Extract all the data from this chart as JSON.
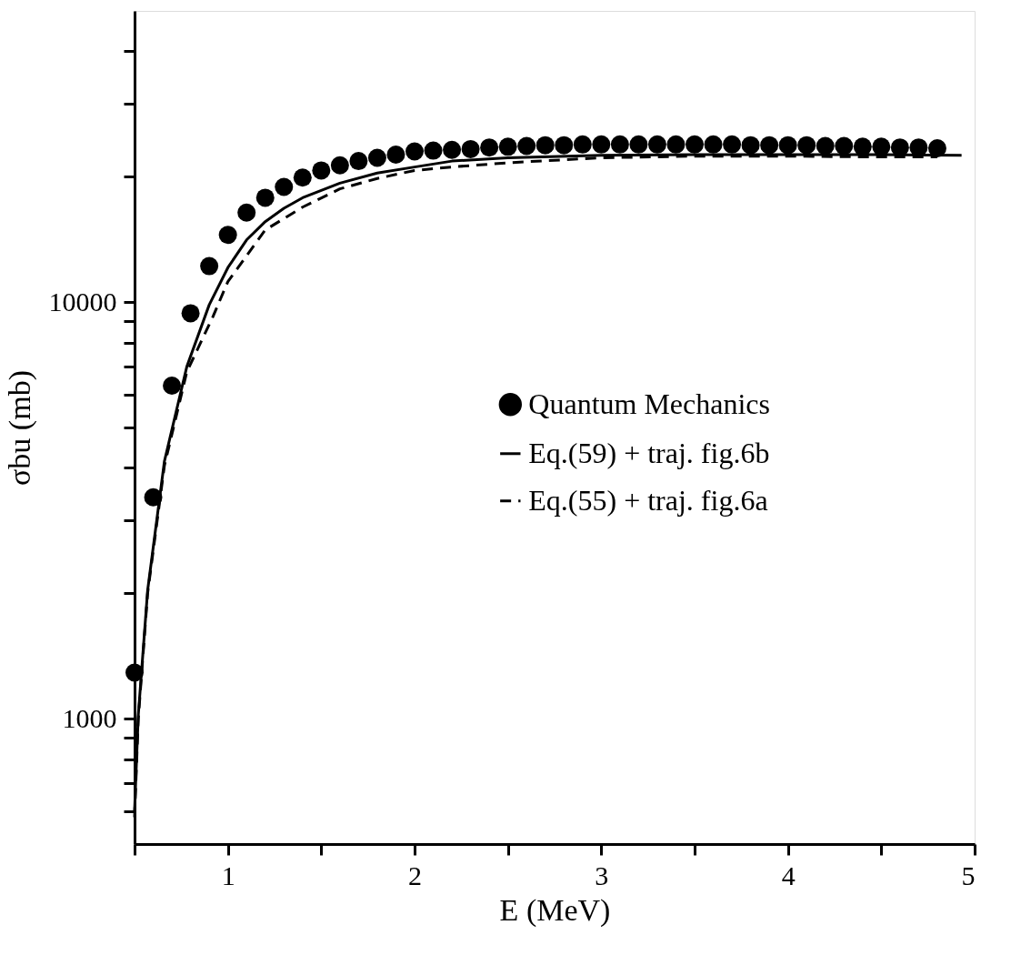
{
  "chart_data": {
    "type": "line",
    "xlabel": "E (MeV)",
    "ylabel": "σbu (mb)",
    "xlim": [
      0.5,
      5
    ],
    "ylim": [
      500,
      50000
    ],
    "log": "y",
    "xticks": [
      {
        "value": 0.5,
        "label": null
      },
      1,
      {
        "value": 1.5,
        "label": null
      },
      2,
      {
        "value": 2.5,
        "label": null
      },
      3,
      {
        "value": 3.5,
        "label": null
      },
      4,
      {
        "value": 4.5,
        "label": null
      },
      5
    ],
    "yticks": [
      {
        "value": 600,
        "label": null
      },
      {
        "value": 700,
        "label": null
      },
      {
        "value": 800,
        "label": null
      },
      {
        "value": 900,
        "label": null
      },
      1000,
      {
        "value": 2000,
        "label": null
      },
      {
        "value": 3000,
        "label": null
      },
      {
        "value": 4000,
        "label": null
      },
      {
        "value": 5000,
        "label": null
      },
      {
        "value": 6000,
        "label": null
      },
      {
        "value": 7000,
        "label": null
      },
      {
        "value": 8000,
        "label": null
      },
      {
        "value": 9000,
        "label": null
      },
      10000,
      {
        "value": 20000,
        "label": null
      },
      {
        "value": 30000,
        "label": null
      },
      {
        "value": 40000,
        "label": null
      }
    ],
    "grid": false,
    "legend": "right",
    "series": [
      {
        "name": "Quantum Mechanics",
        "type": "scatter",
        "marker": "circle",
        "color": "#000000",
        "x": [
          0.5,
          0.6,
          0.7,
          0.8,
          0.9,
          1.0,
          1.1,
          1.2,
          1.3,
          1.4,
          1.5,
          1.6,
          1.7,
          1.8,
          1.9,
          2.0,
          2.1,
          2.2,
          2.3,
          2.4,
          2.5,
          2.6,
          2.7,
          2.8,
          2.9,
          3.0,
          3.1,
          3.2,
          3.3,
          3.4,
          3.5,
          3.6,
          3.7,
          3.8,
          3.9,
          4.0,
          4.1,
          4.2,
          4.3,
          4.4,
          4.5,
          4.6,
          4.7,
          4.8
        ],
        "values": [
          1290,
          3400,
          6300,
          9400,
          12200,
          14500,
          16400,
          17800,
          18900,
          19900,
          20700,
          21300,
          21800,
          22200,
          22600,
          23000,
          23100,
          23200,
          23300,
          23500,
          23600,
          23700,
          23800,
          23800,
          23900,
          23900,
          23900,
          23900,
          23900,
          23900,
          23900,
          23900,
          23900,
          23800,
          23800,
          23800,
          23800,
          23700,
          23700,
          23600,
          23600,
          23500,
          23500,
          23400
        ]
      },
      {
        "name": "Eq.(59) + traj. fig.6b",
        "line_style": "solid",
        "color": "#000000",
        "x": [
          0.5,
          0.52,
          0.57,
          0.66,
          0.78,
          0.9,
          1.0,
          1.1,
          1.2,
          1.3,
          1.4,
          1.6,
          1.8,
          2.0,
          2.2,
          2.5,
          3.0,
          3.5,
          4.0,
          4.5,
          4.93
        ],
        "values": [
          600,
          1020,
          2030,
          4150,
          7000,
          9850,
          12100,
          14100,
          15600,
          16800,
          17800,
          19300,
          20400,
          21100,
          21800,
          22200,
          22500,
          22600,
          22600,
          22600,
          22500
        ]
      },
      {
        "name": "Eq.(55) + traj. fig.6a",
        "line_style": "dashed",
        "color": "#000000",
        "x": [
          0.5,
          0.52,
          0.57,
          0.66,
          0.78,
          0.92,
          1.0,
          1.2,
          1.4,
          1.6,
          1.8,
          2.0,
          2.2,
          2.5,
          3.0,
          3.5,
          4.0,
          4.5,
          4.8
        ],
        "values": [
          580,
          1000,
          2000,
          4050,
          6800,
          9230,
          11200,
          14900,
          16900,
          18700,
          19800,
          20700,
          21100,
          21600,
          22200,
          22400,
          22400,
          22300,
          22300
        ]
      }
    ]
  }
}
